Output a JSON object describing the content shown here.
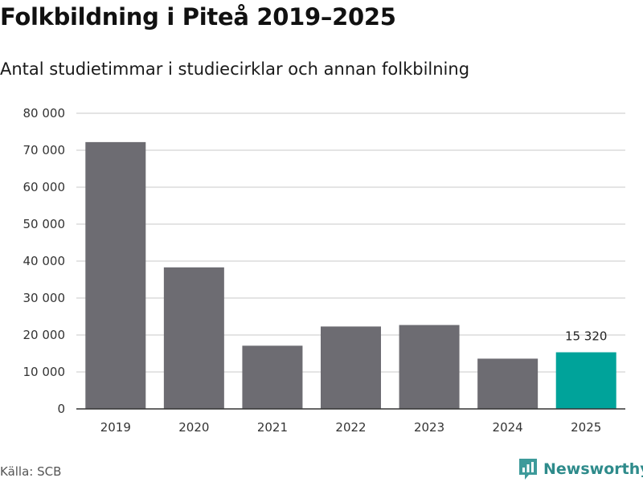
{
  "title": "Folkbildning i Piteå 2019–2025",
  "subtitle": "Antal studietimmar i studiecirklar och annan folkbilning",
  "source": "Källa: SCB",
  "brand": "Newsworthy",
  "colors": {
    "bar": "#6d6c72",
    "highlight": "#00a39a",
    "grid": "#dcdcdc",
    "axis": "#333333",
    "brand": "#2e8b8b"
  },
  "chart_data": {
    "type": "bar",
    "title": "Folkbildning i Piteå 2019–2025",
    "subtitle": "Antal studietimmar i studiecirklar och annan folkbilning",
    "xlabel": "",
    "ylabel": "",
    "categories": [
      "2019",
      "2020",
      "2021",
      "2022",
      "2023",
      "2024",
      "2025"
    ],
    "values": [
      72200,
      38300,
      17100,
      22300,
      22700,
      13600,
      15320
    ],
    "highlight_index": 6,
    "data_labels": [
      {
        "index": 6,
        "text": "15 320"
      }
    ],
    "ylim": [
      0,
      80000
    ],
    "yticks": [
      0,
      10000,
      20000,
      30000,
      40000,
      50000,
      60000,
      70000,
      80000
    ],
    "ytick_labels": [
      "0",
      "10 000",
      "20 000",
      "30 000",
      "40 000",
      "50 000",
      "60 000",
      "70 000",
      "80 000"
    ],
    "grid": true,
    "legend": "none"
  }
}
